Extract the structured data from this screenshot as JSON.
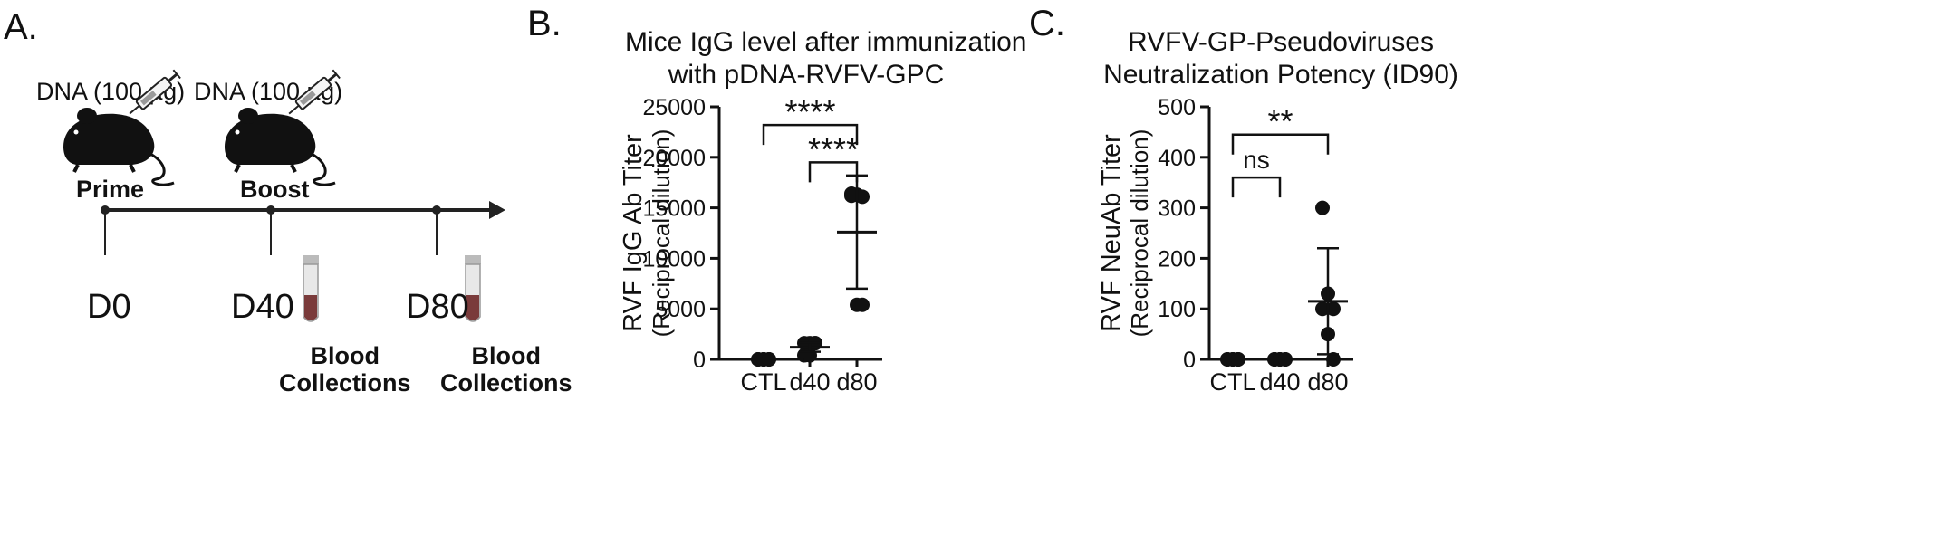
{
  "panels": {
    "a": {
      "letter": "A."
    },
    "b": {
      "letter": "B."
    },
    "c": {
      "letter": "C."
    }
  },
  "schema": {
    "dose_label_1": "DNA (100 µg)",
    "dose_label_2": "DNA (100 µg)",
    "prime_label": "Prime",
    "boost_label": "Boost",
    "days": [
      "D0",
      "D40",
      "D80"
    ],
    "blood_1": [
      "Blood",
      "Collections"
    ],
    "blood_2": [
      "Blood",
      "Collections"
    ],
    "icons": [
      "mouse-icon",
      "syringe-icon",
      "blood-tube-icon",
      "arrow-icon"
    ],
    "colors": {
      "ink": "#111111",
      "tube_blood": "#7a3b3b",
      "tube_glass": "#e8e8e8"
    }
  },
  "chart_data": [
    {
      "type": "scatter",
      "title": [
        "Mice IgG level after immunization",
        "with pDNA-RVFV-GPC"
      ],
      "ylabel": [
        "RVF IgG Ab Titer",
        "(Reciprocal dilution)"
      ],
      "xlabel": "",
      "categories": [
        "CTL",
        "d40",
        "d80"
      ],
      "ylim": [
        0,
        25000
      ],
      "yticks": [
        0,
        5000,
        10000,
        15000,
        20000,
        25000
      ],
      "points": [
        [
          0,
          0,
          0,
          0,
          0,
          0
        ],
        [
          1600,
          1600,
          1600,
          400,
          400,
          1600
        ],
        [
          16200,
          16300,
          16100,
          16400,
          5400,
          5400
        ]
      ],
      "means": [
        0,
        1200,
        12600
      ],
      "sd": [
        0,
        450,
        5600
      ],
      "significance": [
        {
          "from": "CTL",
          "to": "d80",
          "label": "****",
          "y": 23200
        },
        {
          "from": "d40",
          "to": "d80",
          "label": "****",
          "y": 19500
        }
      ]
    },
    {
      "type": "scatter",
      "title": [
        "RVFV-GP-Pseudoviruses",
        "Neutralization Potency (ID90)"
      ],
      "ylabel": [
        "RVF NeuAb Titer",
        "(Reciprocal dilution)"
      ],
      "xlabel": "",
      "categories": [
        "CTL",
        "d40",
        "d80"
      ],
      "ylim": [
        0,
        500
      ],
      "yticks": [
        0,
        100,
        200,
        300,
        400,
        500
      ],
      "points": [
        [
          0,
          0,
          0,
          0,
          0,
          0
        ],
        [
          0,
          0,
          0,
          0,
          0,
          0
        ],
        [
          300,
          130,
          100,
          100,
          50,
          0
        ]
      ],
      "means": [
        0,
        0,
        115
      ],
      "sd": [
        0,
        0,
        105
      ],
      "significance": [
        {
          "from": "CTL",
          "to": "d80",
          "label": "**",
          "y": 445
        },
        {
          "from": "CTL",
          "to": "d40",
          "label": "ns",
          "y": 360
        }
      ]
    }
  ]
}
